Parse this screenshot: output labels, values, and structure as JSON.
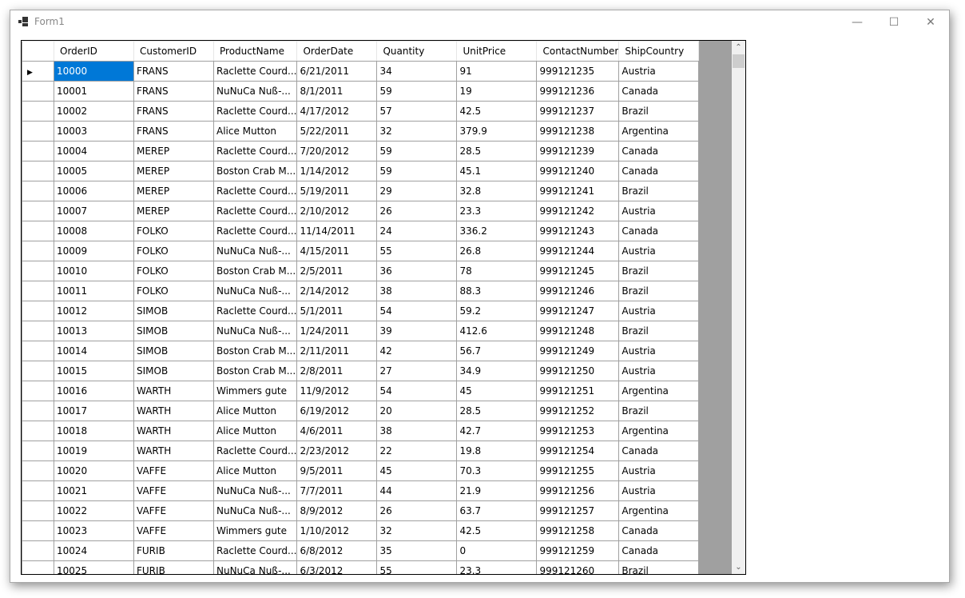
{
  "window": {
    "title": "Form1",
    "minimize": "—",
    "maximize": "☐",
    "close": "✕"
  },
  "grid": {
    "columns": [
      "OrderID",
      "CustomerID",
      "ProductName",
      "OrderDate",
      "Quantity",
      "UnitPrice",
      "ContactNumber",
      "ShipCountry"
    ],
    "selected_row": 0,
    "rows": [
      [
        "10000",
        "FRANS",
        "Raclette Courd...",
        "6/21/2011",
        "34",
        "91",
        "999121235",
        "Austria"
      ],
      [
        "10001",
        "FRANS",
        "NuNuCa Nuß-...",
        "8/1/2011",
        "59",
        "19",
        "999121236",
        "Canada"
      ],
      [
        "10002",
        "FRANS",
        "Raclette Courd...",
        "4/17/2012",
        "57",
        "42.5",
        "999121237",
        "Brazil"
      ],
      [
        "10003",
        "FRANS",
        "Alice Mutton",
        "5/22/2011",
        "32",
        "379.9",
        "999121238",
        "Argentina"
      ],
      [
        "10004",
        "MEREP",
        "Raclette Courd...",
        "7/20/2012",
        "59",
        "28.5",
        "999121239",
        "Canada"
      ],
      [
        "10005",
        "MEREP",
        "Boston Crab M...",
        "1/14/2012",
        "59",
        "45.1",
        "999121240",
        "Canada"
      ],
      [
        "10006",
        "MEREP",
        "Raclette Courd...",
        "5/19/2011",
        "29",
        "32.8",
        "999121241",
        "Brazil"
      ],
      [
        "10007",
        "MEREP",
        "Raclette Courd...",
        "2/10/2012",
        "26",
        "23.3",
        "999121242",
        "Austria"
      ],
      [
        "10008",
        "FOLKO",
        "Raclette Courd...",
        "11/14/2011",
        "24",
        "336.2",
        "999121243",
        "Canada"
      ],
      [
        "10009",
        "FOLKO",
        "NuNuCa Nuß-...",
        "4/15/2011",
        "55",
        "26.8",
        "999121244",
        "Austria"
      ],
      [
        "10010",
        "FOLKO",
        "Boston Crab M...",
        "2/5/2011",
        "36",
        "78",
        "999121245",
        "Brazil"
      ],
      [
        "10011",
        "FOLKO",
        "NuNuCa Nuß-...",
        "2/14/2012",
        "38",
        "88.3",
        "999121246",
        "Brazil"
      ],
      [
        "10012",
        "SIMOB",
        "Raclette Courd...",
        "5/1/2011",
        "54",
        "59.2",
        "999121247",
        "Austria"
      ],
      [
        "10013",
        "SIMOB",
        "NuNuCa Nuß-...",
        "1/24/2011",
        "39",
        "412.6",
        "999121248",
        "Brazil"
      ],
      [
        "10014",
        "SIMOB",
        "Boston Crab M...",
        "2/11/2011",
        "42",
        "56.7",
        "999121249",
        "Austria"
      ],
      [
        "10015",
        "SIMOB",
        "Boston Crab M...",
        "2/8/2011",
        "27",
        "34.9",
        "999121250",
        "Austria"
      ],
      [
        "10016",
        "WARTH",
        "Wimmers gute",
        "11/9/2012",
        "54",
        "45",
        "999121251",
        "Argentina"
      ],
      [
        "10017",
        "WARTH",
        "Alice Mutton",
        "6/19/2012",
        "20",
        "28.5",
        "999121252",
        "Brazil"
      ],
      [
        "10018",
        "WARTH",
        "Alice Mutton",
        "4/6/2011",
        "38",
        "42.7",
        "999121253",
        "Argentina"
      ],
      [
        "10019",
        "WARTH",
        "Raclette Courd...",
        "2/23/2012",
        "22",
        "19.8",
        "999121254",
        "Canada"
      ],
      [
        "10020",
        "VAFFE",
        "Alice Mutton",
        "9/5/2011",
        "45",
        "70.3",
        "999121255",
        "Austria"
      ],
      [
        "10021",
        "VAFFE",
        "NuNuCa Nuß-...",
        "7/7/2011",
        "44",
        "21.9",
        "999121256",
        "Austria"
      ],
      [
        "10022",
        "VAFFE",
        "NuNuCa Nuß-...",
        "8/9/2012",
        "26",
        "63.7",
        "999121257",
        "Argentina"
      ],
      [
        "10023",
        "VAFFE",
        "Wimmers gute",
        "1/10/2012",
        "32",
        "42.5",
        "999121258",
        "Canada"
      ],
      [
        "10024",
        "FURIB",
        "Raclette Courd...",
        "6/8/2012",
        "35",
        "0",
        "999121259",
        "Canada"
      ],
      [
        "10025",
        "FURIB",
        "NuNuCa Nuß-...",
        "6/3/2012",
        "55",
        "23.3",
        "999121260",
        "Brazil"
      ]
    ]
  },
  "colors": {
    "selection": "#0078d7",
    "grid_background": "#a0a0a0"
  }
}
